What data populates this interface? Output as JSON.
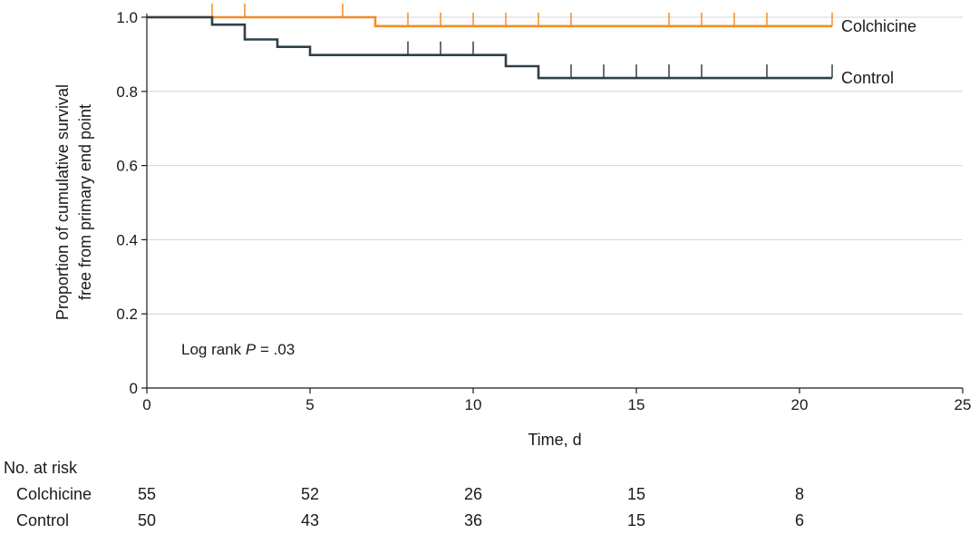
{
  "chart_data": {
    "type": "line",
    "subtype": "kaplan-meier step",
    "xlabel": "Time, d",
    "ylabel_lines": [
      "Proportion of cumulative survival",
      "free from primary end point"
    ],
    "xlim": [
      0,
      25
    ],
    "ylim": [
      0,
      1.0
    ],
    "x_ticks": [
      0,
      5,
      10,
      15,
      20,
      25
    ],
    "y_ticks": [
      0,
      0.2,
      0.4,
      0.6,
      0.8,
      1.0
    ],
    "y_tick_labels": [
      "0",
      "0.2",
      "0.4",
      "0.6",
      "0.8",
      "1.0"
    ],
    "grid": "horizontal",
    "annotation": {
      "prefix": "Log rank ",
      "italic": "P",
      "suffix": " = .03"
    },
    "series": [
      {
        "name": "Colchicine",
        "color": "#f28c28",
        "steps": [
          [
            0,
            1.0
          ],
          [
            7,
            1.0
          ],
          [
            7,
            0.976
          ],
          [
            21,
            0.976
          ]
        ],
        "censor_x": [
          2,
          3,
          6,
          8,
          9,
          10,
          11,
          12,
          13,
          16,
          17,
          18,
          19,
          21
        ]
      },
      {
        "name": "Control",
        "color": "#2f4048",
        "steps": [
          [
            0,
            1.0
          ],
          [
            2,
            1.0
          ],
          [
            2,
            0.98
          ],
          [
            3,
            0.98
          ],
          [
            3,
            0.94
          ],
          [
            4,
            0.94
          ],
          [
            4,
            0.92
          ],
          [
            5,
            0.92
          ],
          [
            5,
            0.898
          ],
          [
            11,
            0.898
          ],
          [
            11,
            0.868
          ],
          [
            12,
            0.868
          ],
          [
            12,
            0.836
          ],
          [
            21,
            0.836
          ]
        ],
        "censor_x": [
          8,
          9,
          10,
          13,
          14,
          15,
          16,
          17,
          19,
          21
        ]
      }
    ]
  },
  "risk_table": {
    "title": "No. at risk",
    "times": [
      0,
      5,
      10,
      15,
      20
    ],
    "rows": [
      {
        "label": "Colchicine",
        "values": [
          "55",
          "52",
          "26",
          "15",
          "8"
        ]
      },
      {
        "label": "Control",
        "values": [
          "50",
          "43",
          "36",
          "15",
          "6"
        ]
      }
    ]
  }
}
